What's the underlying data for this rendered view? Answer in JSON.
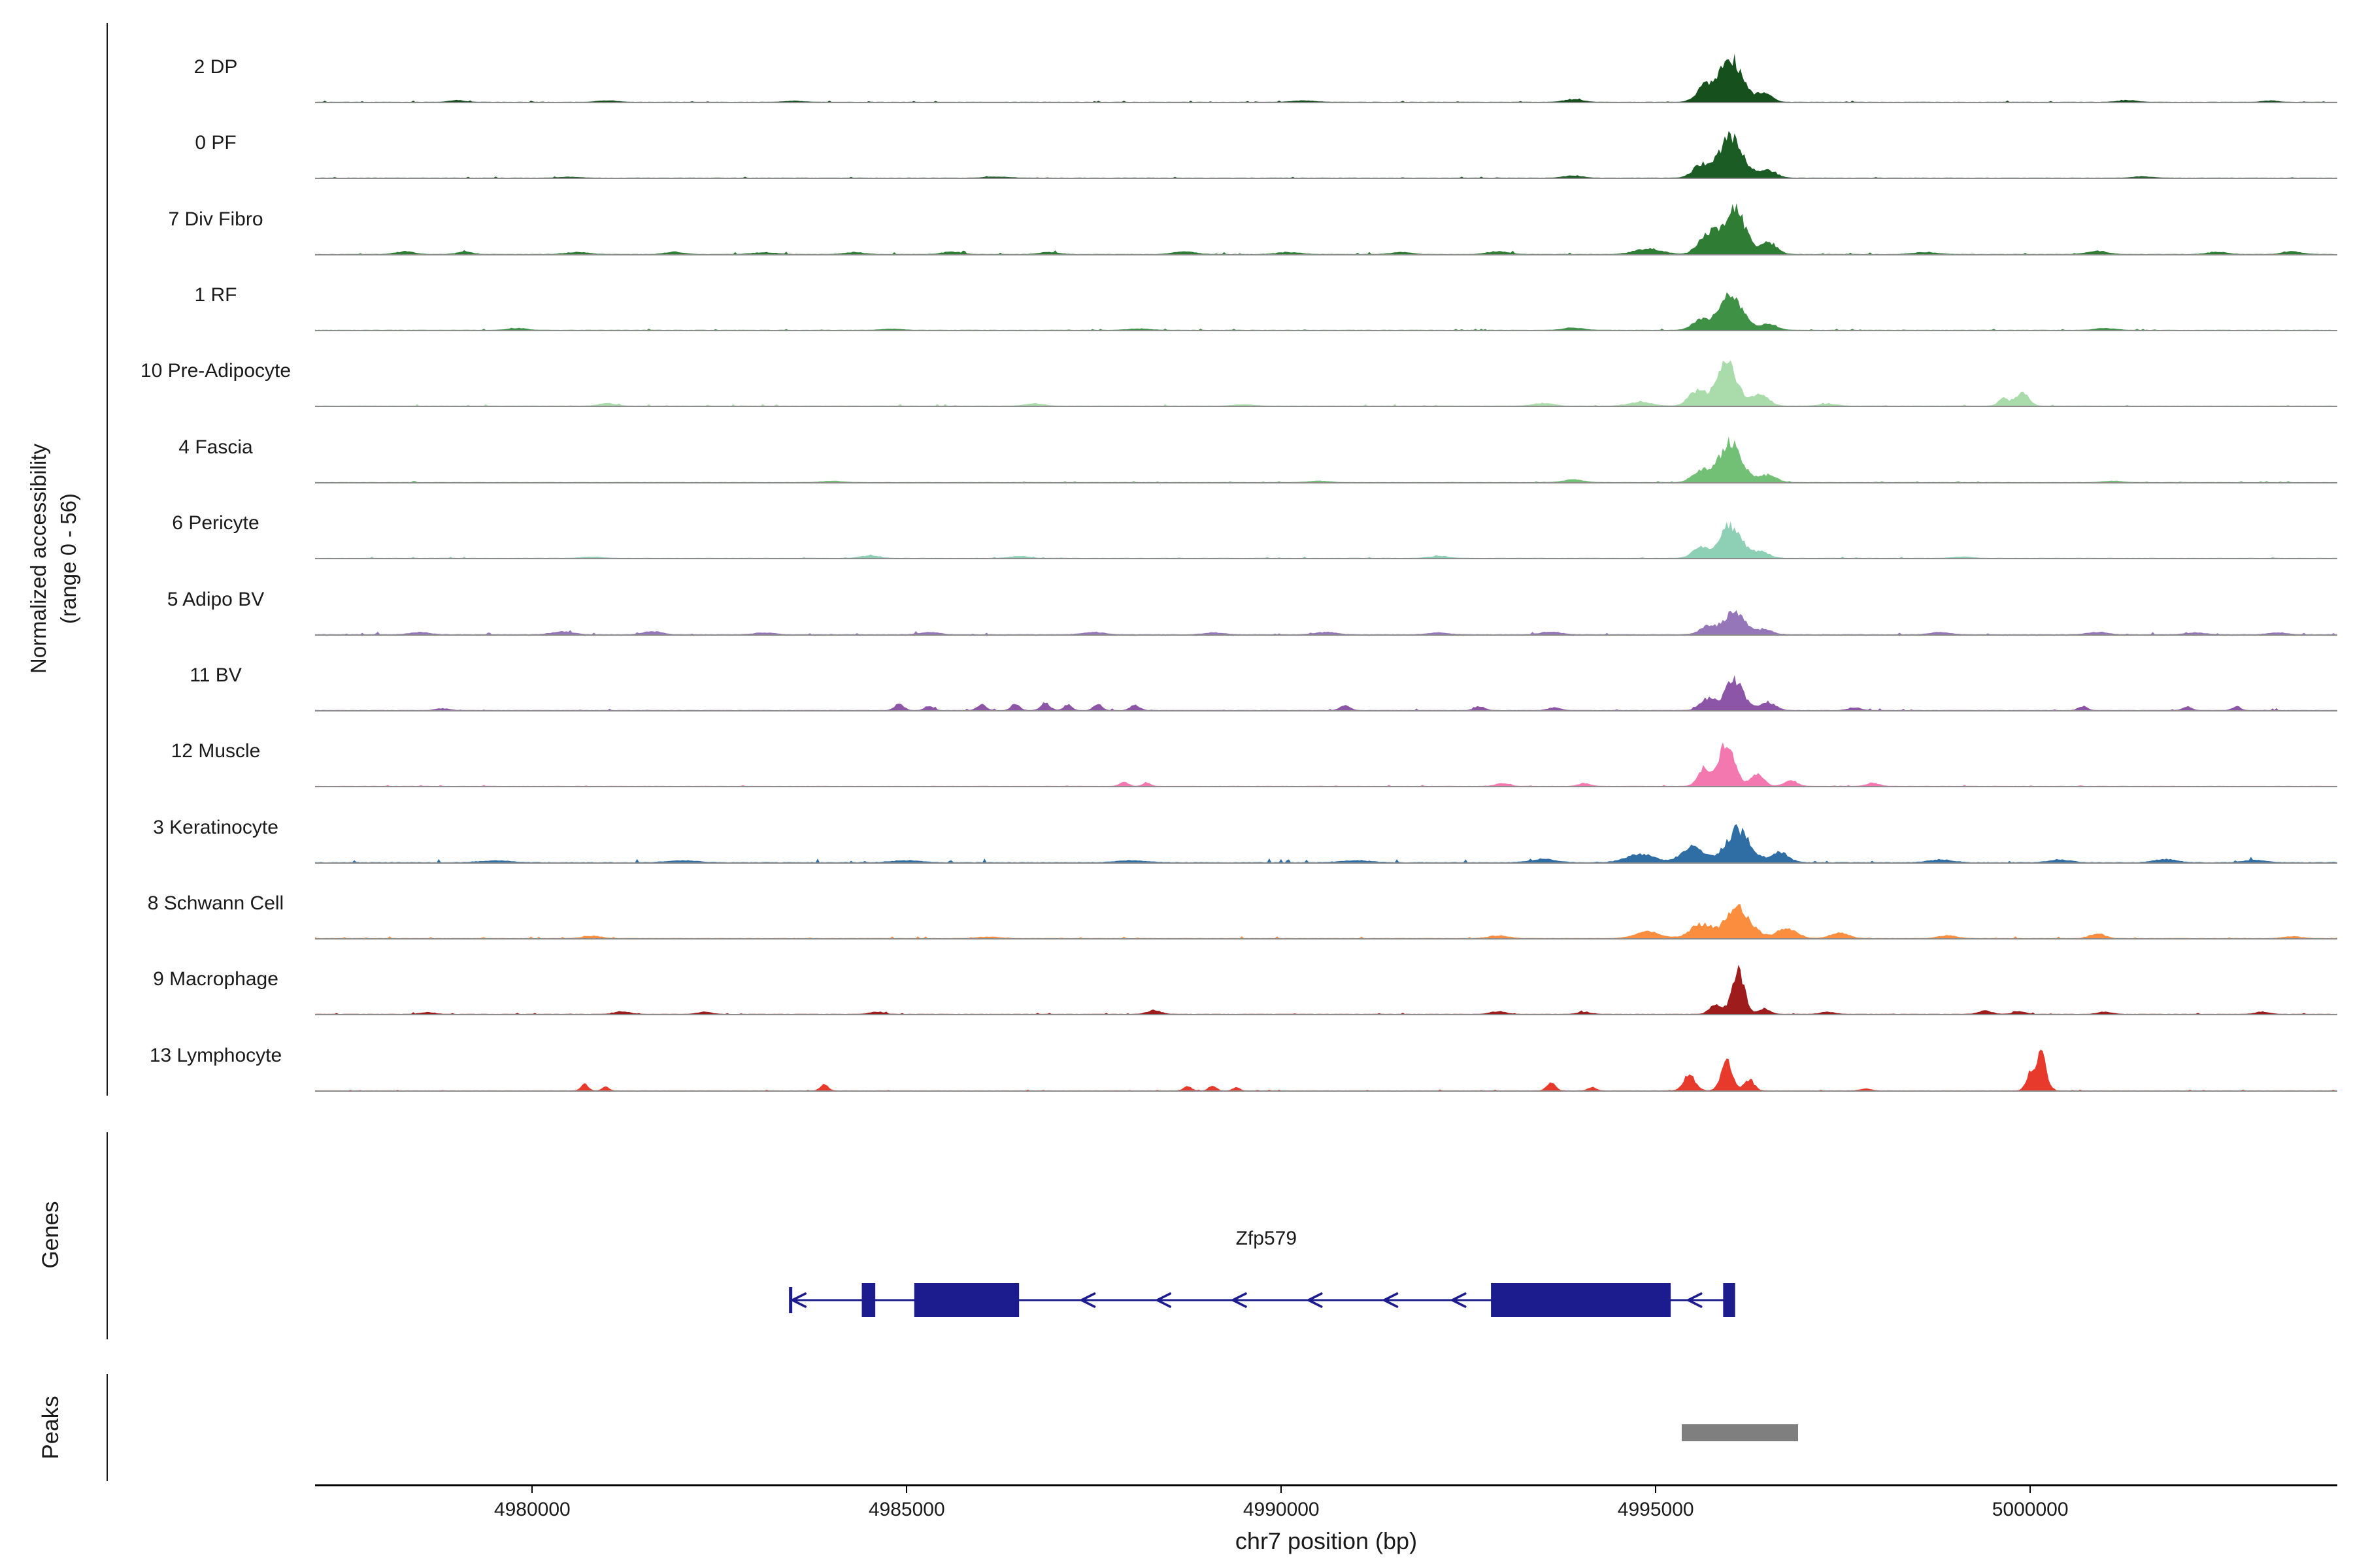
{
  "figure": {
    "y_axis_label_line1": "Normalized accessibility",
    "y_axis_label_line2": "(range 0 - 56)",
    "x_axis_title": "chr7 position (bp)",
    "genes_section_label": "Genes",
    "peaks_section_label": "Peaks"
  },
  "chart_data": {
    "type": "area",
    "title": "",
    "xlabel": "chr7 position (bp)",
    "ylabel": "Normalized accessibility (range 0 - 56)",
    "y_range": [
      0,
      56
    ],
    "x_domain_bp": [
      4977100,
      5004100
    ],
    "x_ticks": [
      4980000,
      4985000,
      4990000,
      4995000,
      5000000
    ],
    "x_tick_labels": [
      "4980000",
      "4985000",
      "4990000",
      "4995000",
      "5000000"
    ],
    "grid": false,
    "legend": "none",
    "tracks": [
      {
        "label": "2 DP",
        "color": "#15501d",
        "seed": 1,
        "noise": 0.5,
        "peaks": [
          [
            4996000,
            48,
            150
          ],
          [
            4995650,
            16,
            110
          ],
          [
            4996450,
            10,
            100
          ],
          [
            4993900,
            3,
            120
          ],
          [
            4990300,
            1.5,
            150
          ],
          [
            4981000,
            1.8,
            120
          ],
          [
            4979000,
            2,
            100
          ],
          [
            4983500,
            1.2,
            130
          ],
          [
            5001300,
            2,
            120
          ],
          [
            5003200,
            1.5,
            100
          ]
        ]
      },
      {
        "label": "0 PF",
        "color": "#1b5c24",
        "seed": 2,
        "noise": 0.4,
        "peaks": [
          [
            4996000,
            44,
            160
          ],
          [
            4995600,
            13,
            110
          ],
          [
            4996500,
            8,
            110
          ],
          [
            4993900,
            2.5,
            120
          ],
          [
            4986200,
            1.2,
            150
          ],
          [
            5001500,
            1.5,
            120
          ],
          [
            4980500,
            1,
            130
          ]
        ]
      },
      {
        "label": "7 Div Fibro",
        "color": "#2f7d34",
        "seed": 3,
        "noise": 0.9,
        "peaks": [
          [
            4996050,
            50,
            140
          ],
          [
            4995700,
            22,
            120
          ],
          [
            4996500,
            13,
            110
          ],
          [
            4994900,
            6,
            180
          ],
          [
            4978300,
            3,
            120
          ],
          [
            4979100,
            2.5,
            100
          ],
          [
            4980600,
            2.2,
            150
          ],
          [
            4981900,
            2.5,
            120
          ],
          [
            4983100,
            2,
            150
          ],
          [
            4984300,
            2.2,
            120
          ],
          [
            4985600,
            2.5,
            130
          ],
          [
            4986900,
            2.2,
            120
          ],
          [
            4988700,
            3,
            140
          ],
          [
            4990100,
            2.2,
            150
          ],
          [
            4991600,
            2.2,
            130
          ],
          [
            4992900,
            3,
            140
          ],
          [
            4998600,
            2.2,
            150
          ],
          [
            5000900,
            3.5,
            130
          ],
          [
            5002500,
            2.5,
            130
          ],
          [
            5003500,
            3,
            120
          ]
        ]
      },
      {
        "label": "1 RF",
        "color": "#3f9245",
        "seed": 4,
        "noise": 0.5,
        "peaks": [
          [
            4996000,
            40,
            150
          ],
          [
            4995600,
            11,
            110
          ],
          [
            4996500,
            7,
            110
          ],
          [
            4993900,
            2.5,
            130
          ],
          [
            4979800,
            2,
            120
          ],
          [
            5001000,
            2,
            130
          ],
          [
            4988100,
            1.5,
            140
          ],
          [
            4984800,
            1.2,
            130
          ]
        ]
      },
      {
        "label": "10 Pre-Adipocyte",
        "color": "#a9dcaa",
        "seed": 5,
        "noise": 0.6,
        "peaks": [
          [
            4995950,
            46,
            140
          ],
          [
            4995550,
            16,
            110
          ],
          [
            4996400,
            12,
            110
          ],
          [
            4994800,
            4,
            150
          ],
          [
            4999900,
            16,
            80
          ],
          [
            4999650,
            8,
            70
          ],
          [
            4981000,
            3,
            110
          ],
          [
            4986700,
            2.5,
            120
          ],
          [
            4993500,
            3,
            130
          ],
          [
            4997300,
            2,
            120
          ],
          [
            4989500,
            1.5,
            130
          ]
        ]
      },
      {
        "label": "4 Fascia",
        "color": "#72c076",
        "seed": 6,
        "noise": 0.5,
        "peaks": [
          [
            4996000,
            44,
            150
          ],
          [
            4995600,
            13,
            110
          ],
          [
            4996500,
            8,
            110
          ],
          [
            4993900,
            3,
            130
          ],
          [
            4990500,
            1.5,
            140
          ],
          [
            4984000,
            1.5,
            130
          ],
          [
            5001100,
            1.5,
            120
          ]
        ]
      },
      {
        "label": "6 Pericyte",
        "color": "#8ed0b5",
        "seed": 7,
        "noise": 0.5,
        "peaks": [
          [
            4996000,
            36,
            140
          ],
          [
            4995600,
            11,
            110
          ],
          [
            4996400,
            7,
            110
          ],
          [
            4984500,
            2.5,
            120
          ],
          [
            4986500,
            2,
            120
          ],
          [
            4992100,
            2,
            130
          ],
          [
            4999100,
            1.5,
            120
          ],
          [
            4980800,
            1.3,
            130
          ]
        ]
      },
      {
        "label": "5 Adipo BV",
        "color": "#9577b9",
        "seed": 8,
        "noise": 1.0,
        "peaks": [
          [
            4996050,
            26,
            130
          ],
          [
            4995700,
            9,
            110
          ],
          [
            4996450,
            6,
            100
          ],
          [
            4978500,
            2.5,
            130
          ],
          [
            4980400,
            3,
            140
          ],
          [
            4981600,
            3.5,
            120
          ],
          [
            4983100,
            2,
            130
          ],
          [
            4985300,
            2.5,
            130
          ],
          [
            4987500,
            2.5,
            140
          ],
          [
            4989100,
            2,
            130
          ],
          [
            4990600,
            2.5,
            140
          ],
          [
            4992100,
            2,
            130
          ],
          [
            4993600,
            3,
            130
          ],
          [
            4998800,
            2.5,
            130
          ],
          [
            5000900,
            2.5,
            130
          ],
          [
            5002200,
            2,
            130
          ],
          [
            5003300,
            2,
            120
          ]
        ]
      },
      {
        "label": "11 BV",
        "color": "#8d55a7",
        "seed": 9,
        "noise": 0.8,
        "peaks": [
          [
            4996050,
            34,
            120
          ],
          [
            4995700,
            13,
            100
          ],
          [
            4996500,
            9,
            100
          ],
          [
            4984900,
            7,
            60
          ],
          [
            4985300,
            5,
            55
          ],
          [
            4986000,
            6,
            60
          ],
          [
            4986450,
            7,
            55
          ],
          [
            4986850,
            8,
            60
          ],
          [
            4987150,
            6,
            55
          ],
          [
            4987550,
            7,
            55
          ],
          [
            4988050,
            6,
            60
          ],
          [
            4990850,
            6,
            60
          ],
          [
            4992650,
            4,
            70
          ],
          [
            4993650,
            3,
            80
          ],
          [
            4997650,
            3,
            80
          ],
          [
            5000700,
            4,
            60
          ],
          [
            5002100,
            4,
            60
          ],
          [
            5002750,
            4,
            55
          ],
          [
            4978800,
            2,
            90
          ]
        ]
      },
      {
        "label": "12 Muscle",
        "color": "#f478b0",
        "seed": 10,
        "noise": 0.4,
        "peaks": [
          [
            4995950,
            50,
            100
          ],
          [
            4995650,
            20,
            85
          ],
          [
            4996350,
            13,
            90
          ],
          [
            4996800,
            6,
            85
          ],
          [
            4987900,
            5,
            55
          ],
          [
            4988200,
            4,
            50
          ],
          [
            4992950,
            3,
            85
          ],
          [
            4994050,
            3,
            80
          ],
          [
            4997900,
            3.5,
            80
          ]
        ]
      },
      {
        "label": "3 Keratinocyte",
        "color": "#2f6da5",
        "seed": 11,
        "noise": 1.6,
        "peaks": [
          [
            4996100,
            36,
            160
          ],
          [
            4995500,
            17,
            150
          ],
          [
            4996650,
            11,
            120
          ],
          [
            4994800,
            9,
            190
          ],
          [
            4998800,
            3,
            150
          ],
          [
            5000400,
            3,
            140
          ],
          [
            5001800,
            3.5,
            140
          ],
          [
            5003000,
            2.5,
            140
          ],
          [
            4979500,
            2,
            200
          ],
          [
            4982000,
            2,
            200
          ],
          [
            4985000,
            2,
            200
          ],
          [
            4988000,
            2,
            200
          ],
          [
            4991000,
            2,
            200
          ],
          [
            4993500,
            3.5,
            170
          ]
        ]
      },
      {
        "label": "8 Schwann Cell",
        "color": "#fb8d3f",
        "seed": 12,
        "noise": 0.7,
        "peaks": [
          [
            4996100,
            32,
            170
          ],
          [
            4995600,
            15,
            140
          ],
          [
            4996750,
            11,
            130
          ],
          [
            4997450,
            6,
            120
          ],
          [
            4994900,
            7,
            170
          ],
          [
            4980800,
            2.5,
            120
          ],
          [
            4992900,
            3,
            130
          ],
          [
            4998900,
            3,
            120
          ],
          [
            5000900,
            5.5,
            95
          ],
          [
            5003500,
            2,
            120
          ],
          [
            4986100,
            1.5,
            150
          ]
        ]
      },
      {
        "label": "9 Macrophage",
        "color": "#9e1c1c",
        "seed": 13,
        "noise": 0.7,
        "peaks": [
          [
            4996100,
            46,
            85
          ],
          [
            4995800,
            11,
            75
          ],
          [
            4996450,
            6,
            75
          ],
          [
            4981200,
            3,
            95
          ],
          [
            4982300,
            2.5,
            90
          ],
          [
            4984600,
            2.5,
            90
          ],
          [
            4988300,
            4,
            90
          ],
          [
            4992900,
            3,
            95
          ],
          [
            4994050,
            2,
            90
          ],
          [
            4997300,
            2.5,
            90
          ],
          [
            4999400,
            3.5,
            90
          ],
          [
            4999850,
            3,
            80
          ],
          [
            5001000,
            2.5,
            90
          ],
          [
            5003100,
            2.5,
            90
          ],
          [
            4978600,
            2,
            90
          ]
        ]
      },
      {
        "label": "13 Lymphocyte",
        "color": "#e8392d",
        "seed": 14,
        "noise": 0.35,
        "peaks": [
          [
            4995950,
            34,
            75
          ],
          [
            4995450,
            18,
            75
          ],
          [
            4996250,
            12,
            65
          ],
          [
            5000150,
            40,
            65
          ],
          [
            5000000,
            18,
            55
          ],
          [
            4980700,
            7,
            48
          ],
          [
            4980980,
            5,
            42
          ],
          [
            4983900,
            7,
            50
          ],
          [
            4988750,
            5,
            48
          ],
          [
            4989080,
            6,
            46
          ],
          [
            4989400,
            4,
            42
          ],
          [
            4993600,
            9,
            55
          ],
          [
            4994150,
            4,
            50
          ],
          [
            4997800,
            2,
            70
          ]
        ]
      }
    ],
    "gene_track": {
      "genes": [
        {
          "name": "Zfp579",
          "strand": "-",
          "color": "#1c1c8f",
          "start": 4983450,
          "end": 4996050,
          "exons": [
            [
              4984400,
              4984580
            ],
            [
              4985100,
              4986500
            ],
            [
              4992800,
              4995200
            ],
            [
              4995900,
              4996060
            ]
          ],
          "arrows_bp": [
            4983560,
            4987420,
            4988430,
            4989440,
            4990450,
            4991460,
            4992370,
            4995520
          ],
          "label_bp": 4989800
        }
      ]
    },
    "peak_track": {
      "color": "#7f7f7f",
      "regions_bp": [
        [
          4995350,
          4996900
        ]
      ]
    }
  }
}
